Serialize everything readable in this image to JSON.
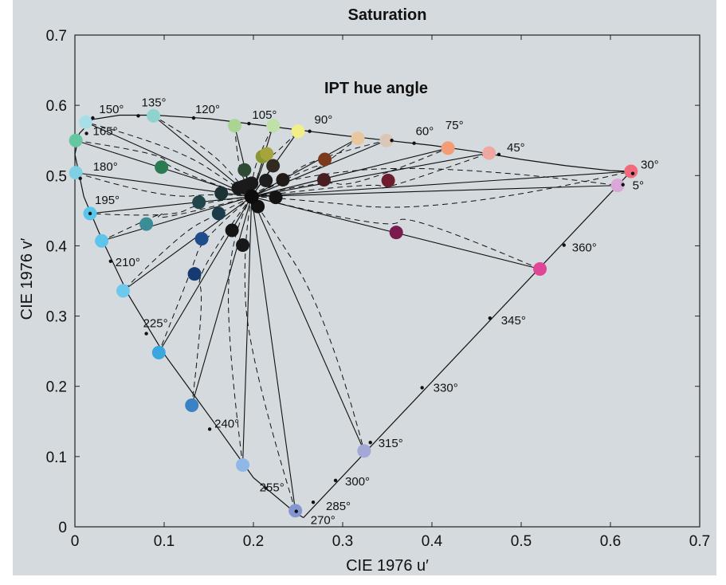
{
  "chart_data": {
    "type": "scatter",
    "title": "Saturation",
    "annotation": "IPT hue angle",
    "xlabel": "CIE 1976 u′",
    "ylabel": "CIE 1976 v′",
    "xlim": [
      0,
      0.7
    ],
    "ylim": [
      0,
      0.7
    ],
    "xticks": [
      0,
      0.1,
      0.2,
      0.3,
      0.4,
      0.5,
      0.6,
      0.7
    ],
    "yticks": [
      0,
      0.1,
      0.2,
      0.3,
      0.4,
      0.5,
      0.6,
      0.7
    ],
    "xtick_labels": [
      "0",
      "0.1",
      "0.2",
      "0.3",
      "0.4",
      "0.5",
      "0.6",
      "0.7"
    ],
    "ytick_labels": [
      "0",
      "0.1",
      "0.2",
      "0.3",
      "0.4",
      "0.5",
      "0.6",
      "0.7"
    ],
    "grid": false,
    "white_point": [
      0.198,
      0.47
    ],
    "spectral_locus": [
      [
        0.256,
        0.013
      ],
      [
        0.245,
        0.022
      ],
      [
        0.2,
        0.07
      ],
      [
        0.155,
        0.15
      ],
      [
        0.1,
        0.246
      ],
      [
        0.06,
        0.33
      ],
      [
        0.03,
        0.41
      ],
      [
        0.01,
        0.47
      ],
      [
        0.0,
        0.53
      ],
      [
        0.005,
        0.56
      ],
      [
        0.02,
        0.58
      ],
      [
        0.05,
        0.586
      ],
      [
        0.09,
        0.586
      ],
      [
        0.15,
        0.581
      ],
      [
        0.2,
        0.573
      ],
      [
        0.25,
        0.565
      ],
      [
        0.3,
        0.557
      ],
      [
        0.35,
        0.55
      ],
      [
        0.4,
        0.543
      ],
      [
        0.45,
        0.534
      ],
      [
        0.5,
        0.523
      ],
      [
        0.55,
        0.514
      ],
      [
        0.6,
        0.507
      ],
      [
        0.623,
        0.506
      ]
    ],
    "purple_line": [
      [
        0.623,
        0.506
      ],
      [
        0.256,
        0.013
      ]
    ],
    "locus_markers": [
      {
        "u": 0.02,
        "v": 0.582,
        "label": "150°"
      },
      {
        "u": 0.071,
        "v": 0.585,
        "label": "135°"
      },
      {
        "u": 0.133,
        "v": 0.582,
        "label": "120°"
      },
      {
        "u": 0.195,
        "v": 0.574,
        "label": "105°"
      },
      {
        "u": 0.263,
        "v": 0.563,
        "label": "90°"
      },
      {
        "u": 0.355,
        "v": 0.55,
        "label": "75°"
      },
      {
        "u": 0.38,
        "v": 0.546,
        "label": "60°"
      },
      {
        "u": 0.475,
        "v": 0.53,
        "label": "45°"
      },
      {
        "u": 0.625,
        "v": 0.503,
        "label": "30°"
      },
      {
        "u": 0.614,
        "v": 0.487,
        "label": "5°"
      },
      {
        "u": 0.548,
        "v": 0.401,
        "label": "360°"
      },
      {
        "u": 0.465,
        "v": 0.297,
        "label": "345°"
      },
      {
        "u": 0.389,
        "v": 0.198,
        "label": "330°"
      },
      {
        "u": 0.331,
        "v": 0.12,
        "label": "315°"
      },
      {
        "u": 0.292,
        "v": 0.066,
        "label": "300°"
      },
      {
        "u": 0.267,
        "v": 0.035,
        "label": "285°"
      },
      {
        "u": 0.248,
        "v": 0.022,
        "label": "270°"
      },
      {
        "u": 0.214,
        "v": 0.055,
        "label": "255°"
      },
      {
        "u": 0.151,
        "v": 0.139,
        "label": "240°"
      },
      {
        "u": 0.08,
        "v": 0.275,
        "label": "225°"
      },
      {
        "u": 0.04,
        "v": 0.378,
        "label": "210°"
      },
      {
        "u": 0.017,
        "v": 0.446,
        "label": "195°"
      },
      {
        "u": 0.006,
        "v": 0.496,
        "label": "180°"
      },
      {
        "u": 0.013,
        "v": 0.56,
        "label": "165°"
      }
    ],
    "hue_lines": [
      {
        "target": [
          0.012,
          0.576
        ],
        "color": "#a8dfe7",
        "inner": {
          "at": [
            0.183,
            0.482
          ],
          "color": "#1a1a1a"
        }
      },
      {
        "target": [
          0.088,
          0.585
        ],
        "color": "#8fd3cf",
        "inner": {
          "at": [
            0.188,
            0.484
          ],
          "color": "#1a1a1a"
        }
      },
      {
        "target": [
          0.179,
          0.571
        ],
        "color": "#a9d491",
        "inner": {
          "at": [
            0.192,
            0.486
          ],
          "color": "#1a1a1a"
        }
      },
      {
        "target": [
          0.222,
          0.571
        ],
        "color": "#bfe0a6",
        "inner": {
          "at": [
            0.198,
            0.489
          ],
          "color": "#1a1a1a"
        }
      },
      {
        "target": [
          0.25,
          0.563
        ],
        "color": "#f2ef88",
        "inner": {
          "at": [
            0.21,
            0.527
          ],
          "color": "#8a9632"
        }
      },
      {
        "target": [
          0.317,
          0.553
        ],
        "color": "#e9c79e",
        "inner": {
          "at": [
            0.28,
            0.523
          ],
          "color": "#7b3a1e"
        }
      },
      {
        "target": [
          0.349,
          0.55
        ],
        "color": "#dbc7b7",
        "inner": {
          "at": [
            0.233,
            0.494
          ],
          "color": "#201a18"
        }
      },
      {
        "target": [
          0.418,
          0.539
        ],
        "color": "#f39c76",
        "inner": {
          "at": [
            0.279,
            0.494
          ],
          "color": "#481f20"
        }
      },
      {
        "target": [
          0.464,
          0.532
        ],
        "color": "#f0a7a2",
        "inner": {
          "at": [
            0.351,
            0.493
          ],
          "color": "#6e1c2e"
        }
      },
      {
        "target": [
          0.623,
          0.506
        ],
        "color": "#f26a7c",
        "inner": {
          "at": [
            0.225,
            0.469
          ],
          "color": "#141414"
        }
      },
      {
        "target": [
          0.608,
          0.486
        ],
        "color": "#d9a8d6",
        "inner": {
          "at": [
            0.214,
            0.493
          ],
          "color": "#1e1e1e"
        }
      },
      {
        "target": [
          0.521,
          0.367
        ],
        "color": "#e14596",
        "inner": {
          "at": [
            0.36,
            0.419
          ],
          "color": "#7a1a4e"
        }
      },
      {
        "target": [
          0.324,
          0.108
        ],
        "color": "#a3a8d6",
        "inner": {
          "at": [
            0.205,
            0.456
          ],
          "color": "#121212"
        }
      },
      {
        "target": [
          0.247,
          0.023
        ],
        "color": "#8496d0",
        "inner": {
          "at": [
            0.188,
            0.401
          ],
          "color": "#181818"
        }
      },
      {
        "target": [
          0.188,
          0.088
        ],
        "color": "#8fb8e6",
        "inner": {
          "at": [
            0.176,
            0.422
          ],
          "color": "#141414"
        }
      },
      {
        "target": [
          0.131,
          0.173
        ],
        "color": "#3b82c4",
        "inner": {
          "at": [
            0.134,
            0.36
          ],
          "color": "#163b72"
        }
      },
      {
        "target": [
          0.094,
          0.248
        ],
        "color": "#39a6de",
        "inner": {
          "at": [
            0.142,
            0.41
          ],
          "color": "#1f4c8c"
        }
      },
      {
        "target": [
          0.054,
          0.336
        ],
        "color": "#6cc8ec",
        "inner": {
          "at": [
            0.161,
            0.446
          ],
          "color": "#1c3c4a"
        }
      },
      {
        "target": [
          0.03,
          0.407
        ],
        "color": "#5ec4ec",
        "inner": {
          "at": [
            0.08,
            0.431
          ],
          "color": "#3a8c96"
        }
      },
      {
        "target": [
          0.017,
          0.446
        ],
        "color": "#58c6ea",
        "inner": {
          "at": [
            0.139,
            0.462
          ],
          "color": "#20454a"
        }
      },
      {
        "target": [
          0.001,
          0.504
        ],
        "color": "#7fd0e2",
        "inner": {
          "at": [
            0.164,
            0.475
          ],
          "color": "#1c3336"
        }
      },
      {
        "target": [
          0.001,
          0.55
        ],
        "color": "#64c7a2",
        "inner": {
          "at": [
            0.097,
            0.512
          ],
          "color": "#2b7a52"
        }
      },
      {
        "target": [
          0.19,
          0.508
        ],
        "color": "#2e4a33",
        "inner": null
      },
      {
        "target": [
          0.215,
          0.531
        ],
        "color": "#a6a43c",
        "inner": null
      },
      {
        "target": [
          0.222,
          0.514
        ],
        "color": "#302a22",
        "inner": null
      }
    ]
  }
}
